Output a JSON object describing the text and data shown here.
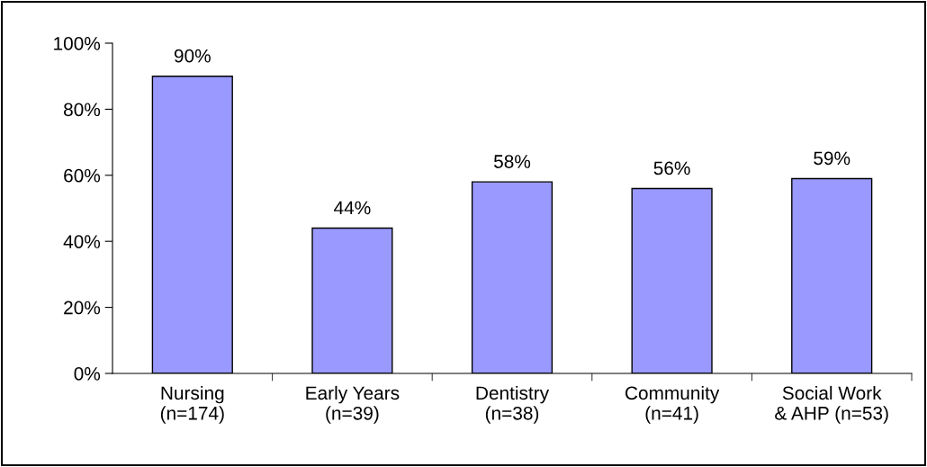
{
  "chart_data": {
    "type": "bar",
    "categories": [
      "Nursing\n(n=174)",
      "Early Years\n(n=39)",
      "Dentistry\n(n=38)",
      "Community\n(n=41)",
      "Social Work\n& AHP (n=53)"
    ],
    "values": [
      90,
      44,
      58,
      56,
      59
    ],
    "value_labels": [
      "90%",
      "44%",
      "58%",
      "56%",
      "59%"
    ],
    "color": "#9999ff",
    "ylim": [
      0,
      100
    ],
    "yticks": [
      {
        "value": 0,
        "label": "0%"
      },
      {
        "value": 20,
        "label": "20%"
      },
      {
        "value": 40,
        "label": "40%"
      },
      {
        "value": 60,
        "label": "60%"
      },
      {
        "value": 80,
        "label": "80%"
      },
      {
        "value": 100,
        "label": "100%"
      }
    ],
    "grid": false,
    "legend": false
  }
}
